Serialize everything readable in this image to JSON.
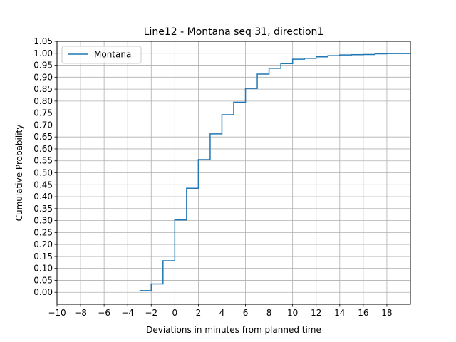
{
  "chart_data": {
    "type": "line",
    "step": "post",
    "title": "Line12 - Montana seq 31, direction1",
    "xlabel": "Deviations in minutes from planned time",
    "ylabel": "Cumulative Probability",
    "xlim": [
      -10,
      20
    ],
    "ylim": [
      -0.05,
      1.05
    ],
    "xticks": [
      -10,
      -8,
      -6,
      -4,
      -2,
      0,
      2,
      4,
      6,
      8,
      10,
      12,
      14,
      16,
      18
    ],
    "xtick_labels": [
      "−10",
      "−8",
      "−6",
      "−4",
      "−2",
      "0",
      "2",
      "4",
      "6",
      "8",
      "10",
      "12",
      "14",
      "16",
      "18"
    ],
    "yticks": [
      0.0,
      0.05,
      0.1,
      0.15,
      0.2,
      0.25,
      0.3,
      0.35,
      0.4,
      0.45,
      0.5,
      0.55,
      0.6,
      0.65,
      0.7,
      0.75,
      0.8,
      0.85,
      0.9,
      0.95,
      1.0,
      1.05
    ],
    "ytick_labels": [
      "0.00",
      "0.05",
      "0.10",
      "0.15",
      "0.20",
      "0.25",
      "0.30",
      "0.35",
      "0.40",
      "0.45",
      "0.50",
      "0.55",
      "0.60",
      "0.65",
      "0.70",
      "0.75",
      "0.80",
      "0.85",
      "0.90",
      "0.95",
      "1.00",
      "1.05"
    ],
    "grid": true,
    "legend_position": "top-left",
    "series": [
      {
        "name": "Montana",
        "color": "#1f77b4",
        "x": [
          -3,
          -2,
          -1,
          0,
          1,
          2,
          3,
          4,
          5,
          6,
          7,
          8,
          9,
          10,
          11,
          12,
          13,
          14,
          15,
          16,
          17,
          18,
          19,
          20
        ],
        "y": [
          0.007,
          0.035,
          0.132,
          0.303,
          0.435,
          0.555,
          0.663,
          0.743,
          0.795,
          0.853,
          0.913,
          0.937,
          0.957,
          0.975,
          0.979,
          0.985,
          0.99,
          0.993,
          0.994,
          0.995,
          0.998,
          0.999,
          0.999,
          1.0
        ]
      }
    ]
  }
}
